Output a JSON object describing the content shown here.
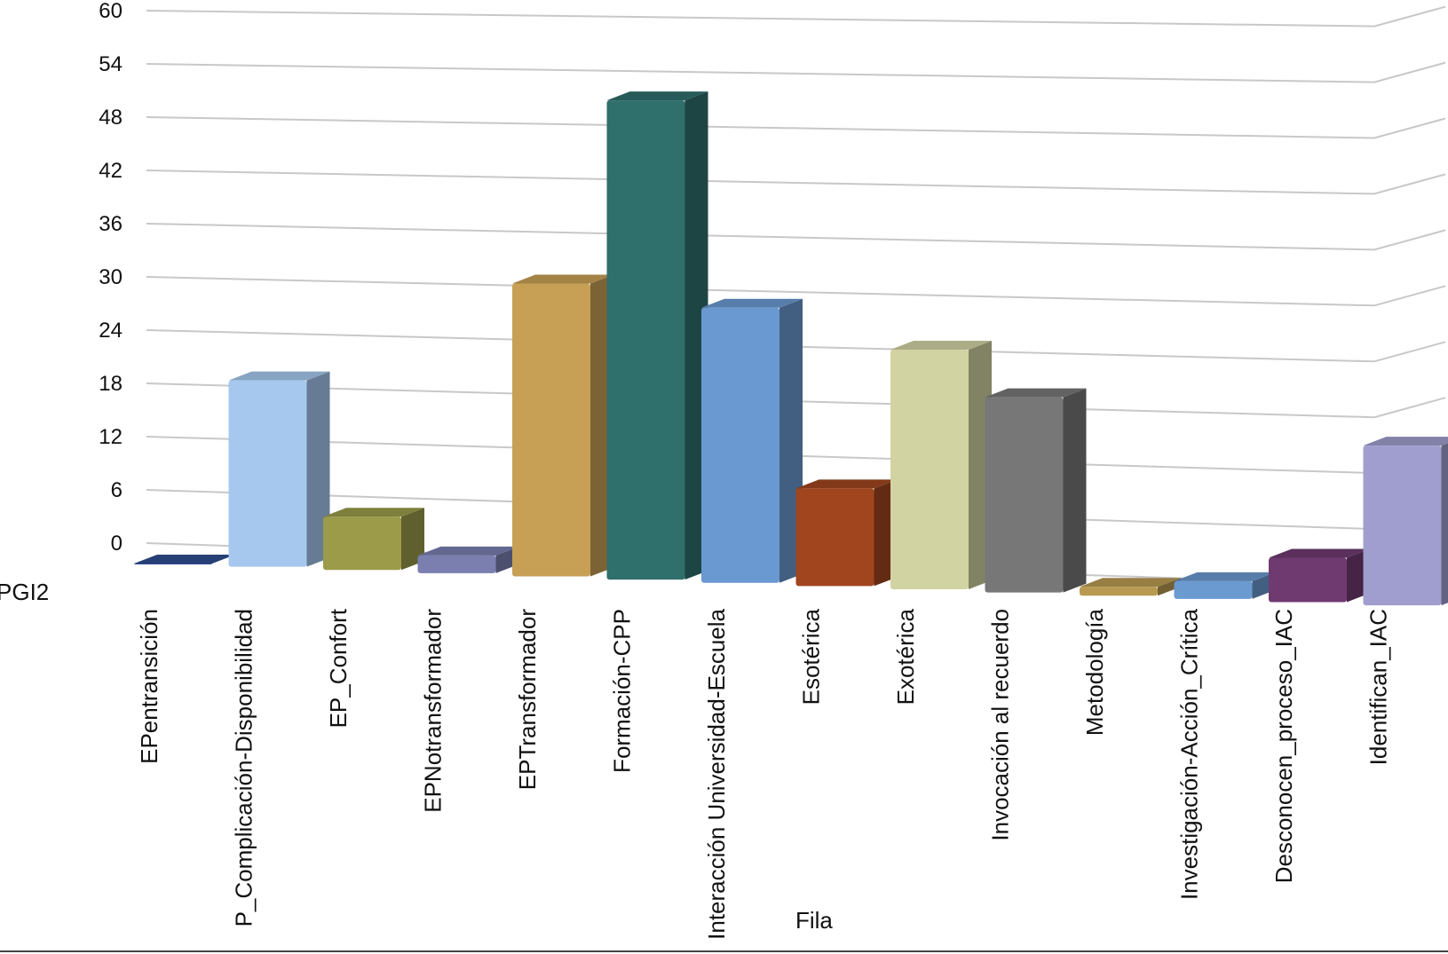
{
  "chart_data": {
    "type": "bar",
    "title": "",
    "xlabel": "Fila",
    "series_label": "PGI2",
    "ylim": [
      0,
      60
    ],
    "y_ticks": [
      0,
      6,
      12,
      18,
      24,
      30,
      36,
      42,
      48,
      54,
      60
    ],
    "grid": true,
    "categories": [
      "EPentransición",
      "P_Complicación-Disponibilidad",
      "EP_Confort",
      "EPNotransformador",
      "EPTransformador",
      "Formación-CPP",
      "Interacción Universidad-Escuela",
      "Esotérica",
      "Exotérica",
      "Invocación al recuerdo",
      "Metodología",
      "Investigación-Acción_Crítica",
      "Desconocen_proceso_IAC",
      "Identifican_IAC"
    ],
    "values": [
      0,
      21,
      6,
      2,
      33,
      54,
      31,
      11,
      27,
      22,
      1,
      2,
      5,
      18
    ],
    "colors": [
      "#2e4d8f",
      "#a6c8ee",
      "#9b9b4a",
      "#7a7fb0",
      "#c8a055",
      "#2f6f6c",
      "#6a98d0",
      "#a0451e",
      "#d2d3a3",
      "#777777",
      "#b89a50",
      "#6a9ad0",
      "#6f3a70",
      "#9f9ece"
    ]
  }
}
